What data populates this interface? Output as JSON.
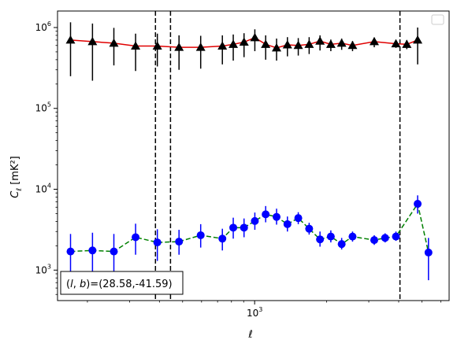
{
  "chart_data": {
    "type": "scatter",
    "x_scale": "log",
    "y_scale": "log",
    "xlim": [
      150,
      6500
    ],
    "ylim": [
      420,
      1600000
    ],
    "xlabel": "ℓ",
    "ylabel_main": "C",
    "ylabel_sub": "ℓ",
    "ylabel_unit": "[mK²]",
    "x_ticks": [
      {
        "value": 1000,
        "base": "10",
        "exp": "3"
      }
    ],
    "y_ticks": [
      {
        "value": 1000,
        "base": "10",
        "exp": "3"
      },
      {
        "value": 10000,
        "base": "10",
        "exp": "4"
      },
      {
        "value": 100000,
        "base": "10",
        "exp": "5"
      },
      {
        "value": 1000000,
        "base": "10",
        "exp": "6"
      }
    ],
    "annotation": "(l, b)=(28.58,-41.59)",
    "annotation_parts": {
      "open": "(",
      "l": "l",
      "comma": ", ",
      "b": "b",
      "rest": ")=(28.58,-41.59)"
    },
    "legend": {
      "placement": "top-right",
      "entries": []
    },
    "vlines": [
      385,
      445,
      4050
    ],
    "x": [
      170,
      189,
      210,
      233,
      258,
      286,
      318,
      353,
      392,
      435,
      483,
      536,
      595,
      660,
      733,
      814,
      903,
      1002,
      1112,
      1235,
      1371,
      1522,
      1690,
      1876,
      2082,
      2311,
      2566,
      2848,
      3162,
      3510,
      3896,
      4325,
      4801,
      5329
    ],
    "series": [
      {
        "color": "#e00000",
        "marker": "triangle",
        "marker_color": "#000000",
        "errorbar_color": "#000000",
        "line_style": "solid",
        "values": [
          700000,
          670000,
          640000,
          590000,
          590000,
          570000,
          570000,
          590000,
          620000,
          660000,
          750000,
          620000,
          560000,
          610000,
          600000,
          620000,
          680000,
          620000,
          640000,
          600000,
          670000,
          630000,
          620000,
          700000
        ],
        "err_low": [
          450000,
          450000,
          300000,
          300000,
          260000,
          270000,
          260000,
          240000,
          230000,
          230000,
          240000,
          220000,
          170000,
          170000,
          150000,
          150000,
          160000,
          110000,
          110000,
          90000,
          100000,
          70000,
          80000,
          350000
        ],
        "err_high": [
          460000,
          450000,
          350000,
          250000,
          250000,
          230000,
          220000,
          210000,
          200000,
          190000,
          200000,
          180000,
          170000,
          150000,
          140000,
          140000,
          120000,
          90000,
          90000,
          80000,
          80000,
          70000,
          80000,
          300000
        ],
        "x_index": [
          0,
          2,
          4,
          6,
          8,
          10,
          12,
          14,
          15,
          16,
          17,
          18,
          19,
          20,
          21,
          22,
          23,
          24,
          25,
          26,
          28,
          30,
          31,
          32
        ]
      },
      {
        "color": "#008000",
        "marker": "circle",
        "marker_color": "#0000ff",
        "errorbar_color": "#0000ff",
        "line_style": "dashed",
        "values": [
          1700,
          1750,
          1700,
          2550,
          2200,
          2250,
          2700,
          2450,
          3350,
          3350,
          4050,
          4900,
          4550,
          3700,
          4400,
          3250,
          2400,
          2600,
          2100,
          2600,
          2350,
          2500,
          2600,
          6600,
          1650
        ],
        "err_low": [
          1000,
          1000,
          900,
          1000,
          900,
          700,
          800,
          700,
          900,
          800,
          900,
          1000,
          900,
          700,
          700,
          500,
          450,
          400,
          300,
          350,
          300,
          300,
          300,
          1600,
          900
        ],
        "err_high": [
          1100,
          1150,
          1100,
          1200,
          1000,
          900,
          1000,
          800,
          1100,
          1000,
          1100,
          1300,
          1200,
          900,
          800,
          600,
          600,
          500,
          400,
          400,
          350,
          350,
          400,
          1800,
          850
        ],
        "x_index": [
          0,
          2,
          4,
          6,
          8,
          10,
          12,
          14,
          15,
          16,
          17,
          18,
          19,
          20,
          21,
          22,
          23,
          24,
          25,
          26,
          28,
          29,
          30,
          32,
          33
        ]
      }
    ]
  }
}
